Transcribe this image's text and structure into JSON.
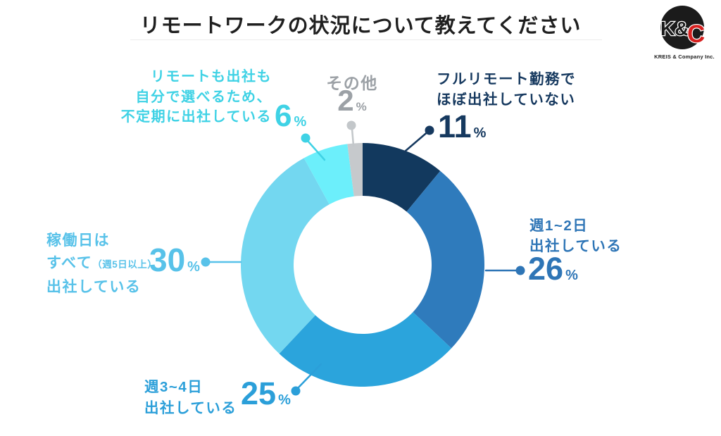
{
  "title": "リモートワークの状況について教えてください",
  "logo": {
    "mono_left": "K&",
    "mono_right": "C",
    "tagline": "KREIS & Company Inc.",
    "circle_color": "#1b1b1b",
    "c_color": "#d6201f"
  },
  "chart_data": {
    "type": "pie",
    "subtype": "donut",
    "title": "リモートワークの状況について教えてください",
    "unit": "%",
    "start_angle_deg": 0,
    "direction": "clockwise",
    "legend_position": "outside-callouts",
    "segments": [
      {
        "label": "フルリモート勤務でほぼ出社していない",
        "lines": [
          "フルリモート勤務で",
          "ほぼ出社していない"
        ],
        "value": 11,
        "color": "#12395e",
        "label_color": "#16395f",
        "leader_color": "#16395f"
      },
      {
        "label": "週1~2日出社している",
        "lines": [
          "週1~2日",
          "出社している"
        ],
        "value": 26,
        "color": "#2f7bbc",
        "label_color": "#2e75b6",
        "leader_color": "#2e75b6"
      },
      {
        "label": "週3~4日出社している",
        "lines": [
          "週3~4日",
          "出社している"
        ],
        "value": 25,
        "color": "#2ba4dc",
        "label_color": "#2b9fd9",
        "leader_color": "#2b9fd9"
      },
      {
        "label": "稼働日はすべて（週5日以上）出社している",
        "lines": [
          "稼働日は",
          "すべて",
          "出社している"
        ],
        "line2_note": "（週5日以上）",
        "value": 30,
        "color": "#73d7f0",
        "label_color": "#58c2e9",
        "leader_color": "#58c2e9"
      },
      {
        "label": "リモートも出社も自分で選べるため、不定期に出社している",
        "lines": [
          "リモートも出社も",
          "自分で選べるため、",
          "不定期に出社している"
        ],
        "value": 6,
        "color": "#6ceffb",
        "label_color": "#3fd2e5",
        "leader_color": "#3fd2e5"
      },
      {
        "label": "その他",
        "lines": [
          "その他"
        ],
        "value": 2,
        "color": "#c6c9cc",
        "label_color": "#9ca1a6",
        "leader_color": "#c3c7ca"
      }
    ]
  }
}
